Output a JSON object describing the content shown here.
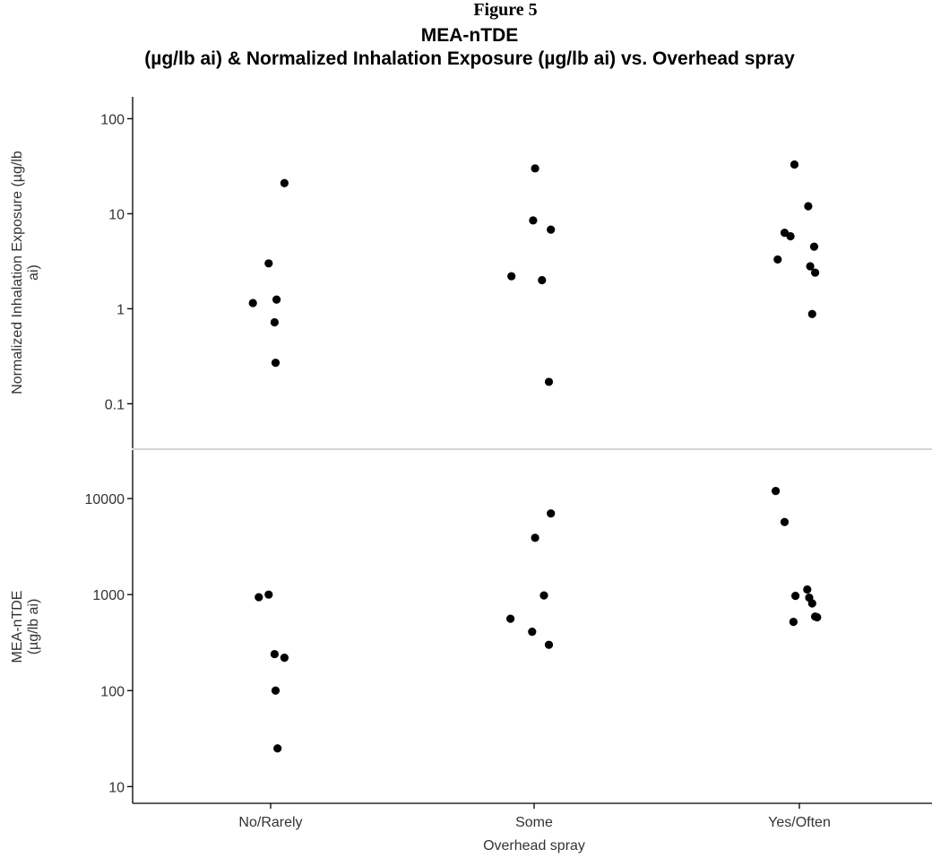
{
  "figure_label": "Figure 5",
  "chart_data": {
    "type": "scatter",
    "title_line1": "MEA-nTDE",
    "title_line2": "(µg/lb ai) & Normalized Inhalation Exposure (µg/lb ai) vs. Overhead spray",
    "xlabel": "Overhead spray",
    "categories": [
      "No/Rarely",
      "Some",
      "Yes/Often"
    ],
    "grid": false,
    "panels": [
      {
        "ylabel_lines": [
          "Normalized Inhalation Exposure (µg/lb",
          "ai)"
        ],
        "yscale": "log",
        "ylim": [
          0.034,
          170
        ],
        "yticks": [
          0.1,
          1,
          10,
          100
        ],
        "ytick_labels": [
          "0.1",
          "1",
          "10",
          "100"
        ],
        "points": [
          {
            "category": "No/Rarely",
            "jitter": 0.14,
            "y": 21
          },
          {
            "category": "No/Rarely",
            "jitter": -0.02,
            "y": 3
          },
          {
            "category": "No/Rarely",
            "jitter": 0.06,
            "y": 1.25
          },
          {
            "category": "No/Rarely",
            "jitter": -0.18,
            "y": 1.15
          },
          {
            "category": "No/Rarely",
            "jitter": 0.04,
            "y": 0.72
          },
          {
            "category": "No/Rarely",
            "jitter": 0.05,
            "y": 0.27
          },
          {
            "category": "Some",
            "jitter": 0.01,
            "y": 30
          },
          {
            "category": "Some",
            "jitter": -0.01,
            "y": 8.5
          },
          {
            "category": "Some",
            "jitter": 0.17,
            "y": 6.8
          },
          {
            "category": "Some",
            "jitter": -0.23,
            "y": 2.2
          },
          {
            "category": "Some",
            "jitter": 0.08,
            "y": 2
          },
          {
            "category": "Some",
            "jitter": 0.15,
            "y": 0.17
          },
          {
            "category": "Yes/Often",
            "jitter": -0.05,
            "y": 33
          },
          {
            "category": "Yes/Often",
            "jitter": 0.09,
            "y": 12
          },
          {
            "category": "Yes/Often",
            "jitter": -0.15,
            "y": 6.3
          },
          {
            "category": "Yes/Often",
            "jitter": -0.09,
            "y": 5.8
          },
          {
            "category": "Yes/Often",
            "jitter": 0.15,
            "y": 4.5
          },
          {
            "category": "Yes/Often",
            "jitter": -0.22,
            "y": 3.3
          },
          {
            "category": "Yes/Often",
            "jitter": 0.11,
            "y": 2.8
          },
          {
            "category": "Yes/Often",
            "jitter": 0.16,
            "y": 2.4
          },
          {
            "category": "Yes/Often",
            "jitter": 0.13,
            "y": 0.88
          }
        ]
      },
      {
        "ylabel_lines": [
          "MEA-nTDE",
          "(µg/lb ai)"
        ],
        "yscale": "log",
        "ylim": [
          6.7,
          32000
        ],
        "yticks": [
          10,
          100,
          1000,
          10000
        ],
        "ytick_labels": [
          "10",
          "100",
          "1000",
          "10000"
        ],
        "points": [
          {
            "category": "No/Rarely",
            "jitter": -0.02,
            "y": 1000
          },
          {
            "category": "No/Rarely",
            "jitter": -0.12,
            "y": 940
          },
          {
            "category": "No/Rarely",
            "jitter": 0.04,
            "y": 240
          },
          {
            "category": "No/Rarely",
            "jitter": 0.14,
            "y": 220
          },
          {
            "category": "No/Rarely",
            "jitter": 0.05,
            "y": 100
          },
          {
            "category": "No/Rarely",
            "jitter": 0.07,
            "y": 25
          },
          {
            "category": "Some",
            "jitter": 0.17,
            "y": 7000
          },
          {
            "category": "Some",
            "jitter": 0.01,
            "y": 3900
          },
          {
            "category": "Some",
            "jitter": 0.1,
            "y": 980
          },
          {
            "category": "Some",
            "jitter": -0.24,
            "y": 560
          },
          {
            "category": "Some",
            "jitter": -0.02,
            "y": 410
          },
          {
            "category": "Some",
            "jitter": 0.15,
            "y": 300
          },
          {
            "category": "Yes/Often",
            "jitter": -0.24,
            "y": 12000
          },
          {
            "category": "Yes/Often",
            "jitter": -0.15,
            "y": 5700
          },
          {
            "category": "Yes/Often",
            "jitter": 0.08,
            "y": 1130
          },
          {
            "category": "Yes/Often",
            "jitter": -0.04,
            "y": 970
          },
          {
            "category": "Yes/Often",
            "jitter": 0.1,
            "y": 930
          },
          {
            "category": "Yes/Often",
            "jitter": 0.13,
            "y": 810
          },
          {
            "category": "Yes/Often",
            "jitter": 0.16,
            "y": 590
          },
          {
            "category": "Yes/Often",
            "jitter": 0.18,
            "y": 580
          },
          {
            "category": "Yes/Often",
            "jitter": -0.06,
            "y": 520
          }
        ]
      }
    ]
  }
}
